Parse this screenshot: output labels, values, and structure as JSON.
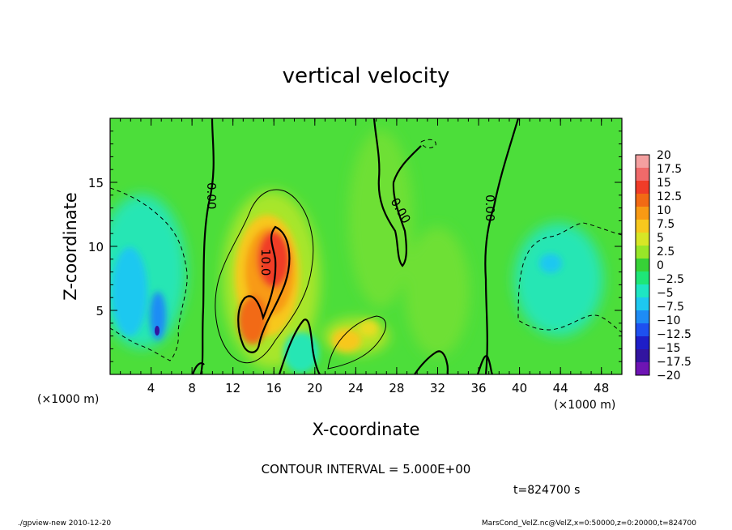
{
  "chart_data": {
    "type": "heatmap",
    "title": "vertical velocity",
    "xlabel": "X-coordinate",
    "ylabel": "Z-coordinate",
    "x_unit_left": "(×1000 m)",
    "x_unit_right": "(×1000 m)",
    "xlim": [
      0,
      50
    ],
    "ylim": [
      0,
      20
    ],
    "xticks": [
      4,
      8,
      12,
      16,
      20,
      24,
      28,
      32,
      36,
      40,
      44,
      48
    ],
    "yticks": [
      5,
      10,
      15
    ],
    "colorbar": {
      "levels": [
        20,
        17.5,
        15,
        12.5,
        10,
        7.5,
        5,
        2.5,
        0,
        -2.5,
        -5,
        -7.5,
        -10,
        -12.5,
        -15,
        -17.5,
        -20
      ],
      "labels": [
        "20",
        "17.5",
        "15",
        "12.5",
        "10",
        "7.5",
        "5",
        "2.5",
        "0",
        "−2.5",
        "−5",
        "−7.5",
        "−10",
        "−12.5",
        "−15",
        "−17.5",
        "−20"
      ],
      "colors": [
        "#f4a0a0",
        "#f06a6a",
        "#f03c28",
        "#f26a14",
        "#f89a14",
        "#f7c81e",
        "#d7e626",
        "#98e628",
        "#37d237",
        "#1ee678",
        "#1ee6c3",
        "#1ec8f0",
        "#1e8cf5",
        "#1e50f0",
        "#1e1ec8",
        "#3214a0",
        "#6e14b4"
      ]
    },
    "contour_labels": [
      "0.00",
      "10.0",
      "0.00",
      "0.00"
    ],
    "contour_interval": "CONTOUR INTERVAL = 5.000E+00",
    "time": "t=824700 s"
  },
  "footer": {
    "left": "./gpview-new   2010-12-20",
    "right": "MarsCond_VelZ.nc@VelZ,x=0:50000,z=0:20000,t=824700"
  }
}
